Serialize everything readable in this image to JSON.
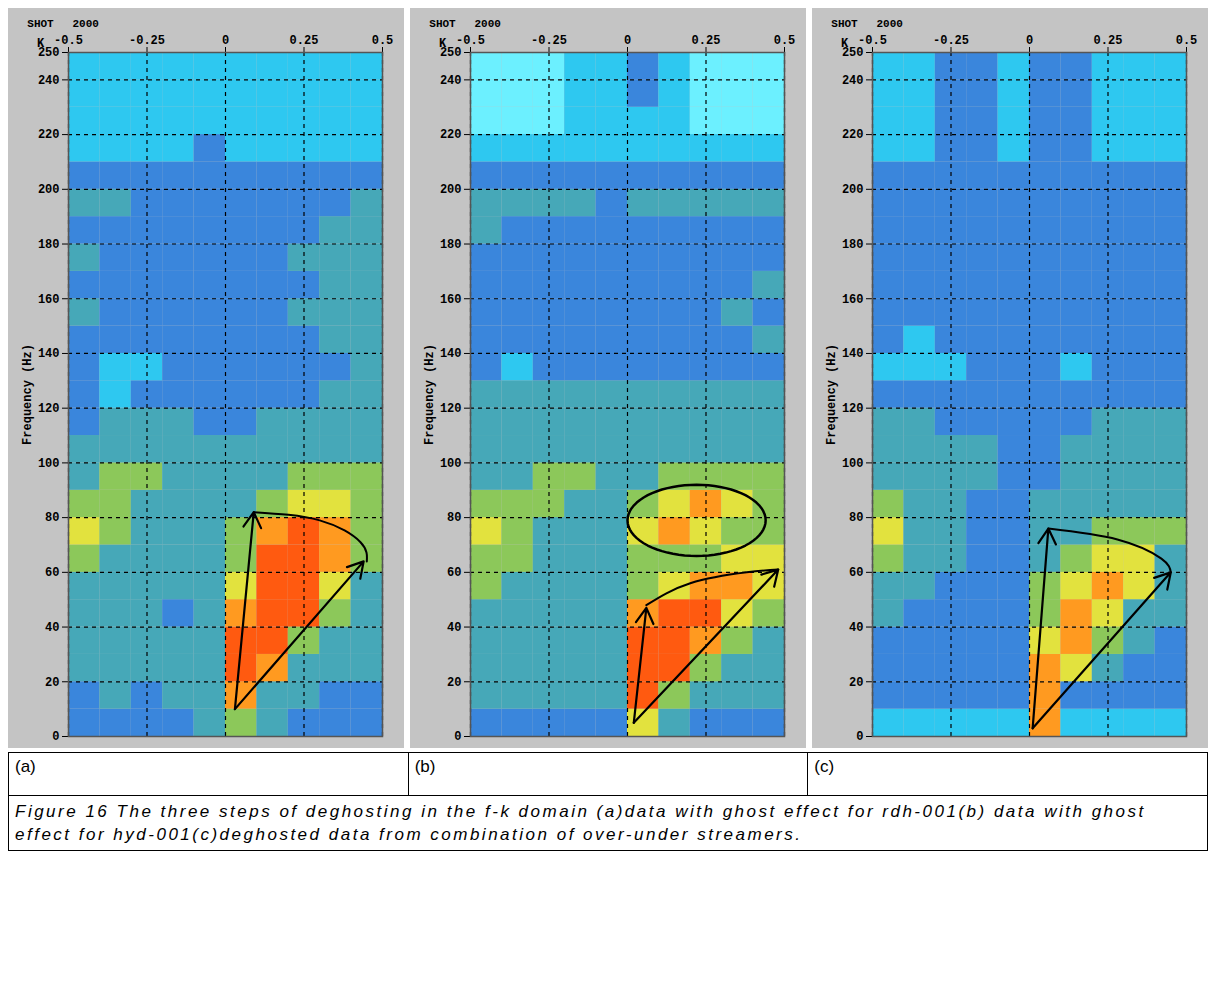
{
  "chart_data": [
    {
      "type": "heatmap",
      "panel_label": "(a)",
      "header_label": "SHOT",
      "shot": 2000,
      "xlabel": "K",
      "ylabel": "Frequency (Hz)",
      "xlim": [
        -0.5,
        0.5
      ],
      "xticks": [
        -0.5,
        -0.25,
        0,
        0.25,
        0.5
      ],
      "ylim": [
        0,
        250
      ],
      "yticks": [
        0,
        20,
        40,
        60,
        80,
        100,
        120,
        140,
        160,
        180,
        200,
        220,
        240,
        250
      ],
      "grid": true,
      "cells": {
        "zlim": [
          0,
          8
        ],
        "k": [
          -0.45,
          -0.35,
          -0.25,
          -0.15,
          -0.05,
          0.05,
          0.15,
          0.25,
          0.35,
          0.45
        ],
        "f": [
          5,
          15,
          25,
          35,
          45,
          55,
          65,
          75,
          85,
          95,
          105,
          115,
          125,
          135,
          145,
          155,
          165,
          175,
          185,
          195,
          205,
          215,
          225,
          235,
          245
        ],
        "amplitude": [
          [
            2,
            2,
            2,
            2,
            3,
            4,
            3,
            2,
            2,
            2
          ],
          [
            2,
            3,
            2,
            3,
            3,
            6,
            3,
            3,
            2,
            2
          ],
          [
            3,
            3,
            3,
            3,
            3,
            7,
            6,
            3,
            3,
            3
          ],
          [
            3,
            3,
            3,
            3,
            3,
            7,
            7,
            4,
            3,
            3
          ],
          [
            3,
            3,
            3,
            2,
            3,
            6,
            7,
            7,
            4,
            3
          ],
          [
            3,
            3,
            3,
            3,
            3,
            5,
            7,
            7,
            5,
            3
          ],
          [
            4,
            3,
            3,
            3,
            3,
            4,
            7,
            7,
            6,
            4
          ],
          [
            5,
            4,
            3,
            3,
            3,
            4,
            6,
            7,
            6,
            4
          ],
          [
            4,
            4,
            3,
            3,
            3,
            3,
            4,
            5,
            5,
            4
          ],
          [
            3,
            4,
            4,
            3,
            3,
            3,
            3,
            4,
            4,
            4
          ],
          [
            3,
            3,
            3,
            3,
            3,
            3,
            3,
            3,
            3,
            3
          ],
          [
            2,
            3,
            3,
            3,
            2,
            2,
            3,
            3,
            3,
            3
          ],
          [
            2,
            1,
            2,
            2,
            2,
            2,
            2,
            2,
            3,
            3
          ],
          [
            2,
            1,
            1,
            2,
            2,
            2,
            2,
            2,
            2,
            3
          ],
          [
            2,
            2,
            2,
            2,
            2,
            2,
            2,
            2,
            3,
            3
          ],
          [
            3,
            2,
            2,
            2,
            2,
            2,
            2,
            3,
            3,
            3
          ],
          [
            2,
            2,
            2,
            2,
            2,
            2,
            2,
            2,
            3,
            3
          ],
          [
            3,
            2,
            2,
            2,
            2,
            2,
            2,
            3,
            3,
            3
          ],
          [
            2,
            2,
            2,
            2,
            2,
            2,
            2,
            2,
            3,
            3
          ],
          [
            3,
            3,
            2,
            2,
            2,
            2,
            2,
            2,
            2,
            3
          ],
          [
            2,
            2,
            2,
            2,
            2,
            2,
            2,
            2,
            2,
            2
          ],
          [
            1,
            1,
            1,
            1,
            2,
            1,
            1,
            1,
            1,
            1
          ],
          [
            1,
            1,
            1,
            1,
            1,
            1,
            1,
            1,
            1,
            1
          ],
          [
            1,
            1,
            1,
            1,
            1,
            1,
            1,
            1,
            1,
            1
          ],
          [
            1,
            1,
            1,
            1,
            1,
            1,
            1,
            1,
            1,
            1
          ]
        ]
      },
      "annotations": {
        "arrows": [
          {
            "k1": 0.03,
            "f1": 10,
            "k2": 0.09,
            "f2": 82
          },
          {
            "k1": 0.03,
            "f1": 10,
            "k2": 0.44,
            "f2": 64
          }
        ],
        "arc": [
          [
            0.09,
            82
          ],
          [
            0.3,
            79
          ],
          [
            0.43,
            71
          ],
          [
            0.45,
            64
          ]
        ]
      }
    },
    {
      "type": "heatmap",
      "panel_label": "(b)",
      "header_label": "SHOT",
      "shot": 2000,
      "xlabel": "K",
      "ylabel": "Frequency (Hz)",
      "xlim": [
        -0.5,
        0.5
      ],
      "xticks": [
        -0.5,
        -0.25,
        0,
        0.25,
        0.5
      ],
      "ylim": [
        0,
        250
      ],
      "yticks": [
        0,
        20,
        40,
        60,
        80,
        100,
        120,
        140,
        160,
        180,
        200,
        220,
        240,
        250
      ],
      "grid": true,
      "cells": {
        "zlim": [
          0,
          8
        ],
        "k": [
          -0.45,
          -0.35,
          -0.25,
          -0.15,
          -0.05,
          0.05,
          0.15,
          0.25,
          0.35,
          0.45
        ],
        "f": [
          5,
          15,
          25,
          35,
          45,
          55,
          65,
          75,
          85,
          95,
          105,
          115,
          125,
          135,
          145,
          155,
          165,
          175,
          185,
          195,
          205,
          215,
          225,
          235,
          245
        ],
        "amplitude": [
          [
            2,
            2,
            2,
            2,
            2,
            5,
            3,
            2,
            2,
            2
          ],
          [
            3,
            3,
            3,
            3,
            3,
            7,
            4,
            3,
            3,
            3
          ],
          [
            3,
            3,
            3,
            3,
            3,
            7,
            7,
            4,
            3,
            3
          ],
          [
            3,
            3,
            3,
            3,
            3,
            7,
            7,
            6,
            4,
            3
          ],
          [
            3,
            3,
            3,
            3,
            3,
            6,
            7,
            7,
            5,
            4
          ],
          [
            4,
            3,
            3,
            3,
            3,
            4,
            5,
            6,
            6,
            5
          ],
          [
            4,
            4,
            3,
            3,
            3,
            4,
            4,
            4,
            5,
            5
          ],
          [
            5,
            4,
            3,
            3,
            3,
            5,
            6,
            5,
            4,
            4
          ],
          [
            4,
            4,
            4,
            3,
            3,
            4,
            5,
            6,
            5,
            4
          ],
          [
            3,
            3,
            4,
            4,
            3,
            3,
            4,
            4,
            4,
            4
          ],
          [
            3,
            3,
            3,
            3,
            3,
            3,
            3,
            3,
            3,
            3
          ],
          [
            3,
            3,
            3,
            3,
            3,
            3,
            3,
            3,
            3,
            3
          ],
          [
            3,
            3,
            3,
            3,
            3,
            3,
            3,
            3,
            3,
            3
          ],
          [
            2,
            1,
            2,
            2,
            2,
            2,
            2,
            2,
            2,
            2
          ],
          [
            2,
            2,
            2,
            2,
            2,
            2,
            2,
            2,
            2,
            3
          ],
          [
            2,
            2,
            2,
            2,
            2,
            2,
            2,
            2,
            3,
            2
          ],
          [
            2,
            2,
            2,
            2,
            2,
            2,
            2,
            2,
            2,
            3
          ],
          [
            2,
            2,
            2,
            2,
            2,
            2,
            2,
            2,
            2,
            2
          ],
          [
            3,
            2,
            2,
            2,
            2,
            2,
            2,
            2,
            2,
            2
          ],
          [
            3,
            3,
            3,
            3,
            2,
            3,
            3,
            3,
            3,
            3
          ],
          [
            2,
            2,
            2,
            2,
            2,
            2,
            2,
            2,
            2,
            2
          ],
          [
            1,
            1,
            1,
            1,
            1,
            1,
            1,
            1,
            1,
            1
          ],
          [
            0,
            0,
            0,
            1,
            1,
            1,
            1,
            0,
            0,
            0
          ],
          [
            0,
            0,
            0,
            1,
            1,
            2,
            1,
            0,
            0,
            0
          ],
          [
            0,
            0,
            0,
            1,
            1,
            2,
            1,
            0,
            0,
            0
          ]
        ]
      },
      "annotations": {
        "arrows": [
          {
            "k1": 0.02,
            "f1": 5,
            "k2": 0.06,
            "f2": 47
          },
          {
            "k1": 0.02,
            "f1": 5,
            "k2": 0.48,
            "f2": 61
          }
        ],
        "arc": [
          [
            0.06,
            48
          ],
          [
            0.2,
            56
          ],
          [
            0.38,
            60
          ],
          [
            0.48,
            61
          ]
        ],
        "ellipse": {
          "k": 0.22,
          "f": 79,
          "rk": 0.22,
          "rf": 13
        }
      }
    },
    {
      "type": "heatmap",
      "panel_label": "(c)",
      "header_label": "SHOT",
      "shot": 2000,
      "xlabel": "K",
      "ylabel": "Frequency (Hz)",
      "xlim": [
        -0.5,
        0.5
      ],
      "xticks": [
        -0.5,
        -0.25,
        0,
        0.25,
        0.5
      ],
      "ylim": [
        0,
        250
      ],
      "yticks": [
        0,
        20,
        40,
        60,
        80,
        100,
        120,
        140,
        160,
        180,
        200,
        220,
        240,
        250
      ],
      "grid": true,
      "cells": {
        "zlim": [
          0,
          8
        ],
        "k": [
          -0.45,
          -0.35,
          -0.25,
          -0.15,
          -0.05,
          0.05,
          0.15,
          0.25,
          0.35,
          0.45
        ],
        "f": [
          5,
          15,
          25,
          35,
          45,
          55,
          65,
          75,
          85,
          95,
          105,
          115,
          125,
          135,
          145,
          155,
          165,
          175,
          185,
          195,
          205,
          215,
          225,
          235,
          245
        ],
        "amplitude": [
          [
            1,
            1,
            1,
            1,
            1,
            6,
            1,
            1,
            1,
            1
          ],
          [
            2,
            2,
            2,
            2,
            2,
            6,
            2,
            2,
            2,
            2
          ],
          [
            2,
            2,
            2,
            2,
            2,
            6,
            5,
            3,
            2,
            2
          ],
          [
            2,
            2,
            2,
            2,
            2,
            5,
            6,
            4,
            3,
            2
          ],
          [
            3,
            2,
            2,
            2,
            2,
            4,
            6,
            5,
            3,
            3
          ],
          [
            3,
            3,
            2,
            2,
            2,
            4,
            5,
            6,
            5,
            3
          ],
          [
            4,
            3,
            3,
            2,
            2,
            3,
            4,
            5,
            5,
            3
          ],
          [
            5,
            3,
            3,
            2,
            2,
            3,
            3,
            4,
            4,
            4
          ],
          [
            4,
            3,
            3,
            2,
            2,
            3,
            3,
            3,
            3,
            3
          ],
          [
            3,
            3,
            3,
            3,
            2,
            2,
            3,
            3,
            3,
            3
          ],
          [
            3,
            3,
            3,
            3,
            2,
            2,
            3,
            3,
            3,
            3
          ],
          [
            3,
            3,
            2,
            2,
            2,
            2,
            2,
            3,
            3,
            3
          ],
          [
            2,
            2,
            2,
            2,
            2,
            2,
            2,
            2,
            2,
            2
          ],
          [
            1,
            1,
            1,
            2,
            2,
            2,
            1,
            2,
            2,
            2
          ],
          [
            2,
            1,
            2,
            2,
            2,
            2,
            2,
            2,
            2,
            2
          ],
          [
            2,
            2,
            2,
            2,
            2,
            2,
            2,
            2,
            2,
            2
          ],
          [
            2,
            2,
            2,
            2,
            2,
            2,
            2,
            2,
            2,
            2
          ],
          [
            2,
            2,
            2,
            2,
            2,
            2,
            2,
            2,
            2,
            2
          ],
          [
            2,
            2,
            2,
            2,
            2,
            2,
            2,
            2,
            2,
            2
          ],
          [
            2,
            2,
            2,
            2,
            2,
            2,
            2,
            2,
            2,
            2
          ],
          [
            2,
            2,
            2,
            2,
            2,
            2,
            2,
            2,
            2,
            2
          ],
          [
            1,
            1,
            2,
            2,
            1,
            2,
            2,
            1,
            1,
            1
          ],
          [
            1,
            1,
            2,
            2,
            1,
            2,
            2,
            1,
            1,
            1
          ],
          [
            1,
            1,
            2,
            2,
            1,
            2,
            2,
            1,
            1,
            1
          ],
          [
            1,
            1,
            2,
            2,
            1,
            2,
            2,
            1,
            1,
            1
          ]
        ]
      },
      "annotations": {
        "arrows": [
          {
            "k1": 0.01,
            "f1": 3,
            "k2": 0.06,
            "f2": 76
          },
          {
            "k1": 0.01,
            "f1": 3,
            "k2": 0.45,
            "f2": 60
          }
        ],
        "arc": [
          [
            0.06,
            76
          ],
          [
            0.28,
            72
          ],
          [
            0.42,
            65
          ],
          [
            0.45,
            60
          ]
        ]
      }
    }
  ],
  "caption": "Figure 16 The three steps of deghosting in the f-k domain (a)data with ghost effect for rdh-001(b) data with ghost effect for hyd-001(c)deghosted data from combination of over-under streamers."
}
